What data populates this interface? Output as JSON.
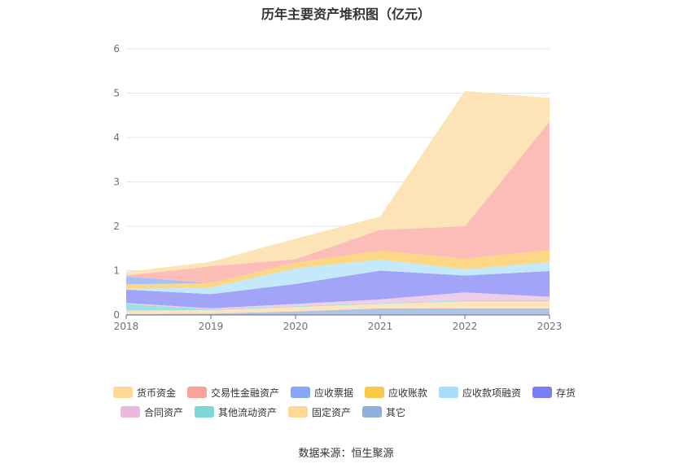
{
  "title": "历年主要资产堆积图（亿元）",
  "source": "数据来源：恒生聚源",
  "chart_data": {
    "type": "area",
    "stacked": true,
    "title": "历年主要资产堆积图（亿元）",
    "categories": [
      "2018",
      "2019",
      "2020",
      "2021",
      "2022",
      "2023"
    ],
    "y_ticks": [
      0,
      1,
      2,
      3,
      4,
      5,
      6
    ],
    "ylim": [
      0,
      6
    ],
    "grid": true,
    "legend_position": "bottom",
    "series": [
      {
        "name": "其它",
        "color": "#aec4e6",
        "values": [
          0.02,
          0.03,
          0.08,
          0.15,
          0.15,
          0.15
        ]
      },
      {
        "name": "固定资产",
        "color": "#fde4bf",
        "values": [
          0.08,
          0.08,
          0.1,
          0.1,
          0.16,
          0.16
        ]
      },
      {
        "name": "其他流动资产",
        "color": "#9fe0e3",
        "values": [
          0.15,
          0.02,
          0.02,
          0.02,
          0.02,
          0.02
        ]
      },
      {
        "name": "合同资产",
        "color": "#f0cde8",
        "values": [
          0.02,
          0.02,
          0.05,
          0.08,
          0.18,
          0.08
        ]
      },
      {
        "name": "存货",
        "color": "#a2a4f7",
        "values": [
          0.3,
          0.32,
          0.45,
          0.65,
          0.38,
          0.58
        ]
      },
      {
        "name": "应收款项融资",
        "color": "#c4e9fb",
        "values": [
          0.02,
          0.15,
          0.35,
          0.25,
          0.14,
          0.2
        ]
      },
      {
        "name": "应收账款",
        "color": "#fbd786",
        "values": [
          0.1,
          0.1,
          0.13,
          0.2,
          0.24,
          0.27
        ]
      },
      {
        "name": "应收票据",
        "color": "#a7c0f9",
        "values": [
          0.18,
          0.0,
          0.0,
          0.0,
          0.0,
          0.0
        ]
      },
      {
        "name": "交易性金融资产",
        "color": "#fcbdb8",
        "values": [
          0.02,
          0.38,
          0.08,
          0.47,
          0.73,
          2.9
        ]
      },
      {
        "name": "货币资金",
        "color": "#fce4b6",
        "values": [
          0.08,
          0.1,
          0.46,
          0.3,
          3.05,
          0.53
        ]
      }
    ]
  },
  "legend": {
    "row1": [
      {
        "label": "货币资金",
        "color": "#ffd896"
      },
      {
        "label": "交易性金融资产",
        "color": "#f8a39a"
      },
      {
        "label": "应收票据",
        "color": "#86a7f9"
      },
      {
        "label": "应收账款",
        "color": "#fbc94a"
      },
      {
        "label": "应收款项融资",
        "color": "#a8dcfa"
      },
      {
        "label": "存货",
        "color": "#7b7df2"
      }
    ],
    "row2": [
      {
        "label": "合同资产",
        "color": "#e8b8df"
      },
      {
        "label": "其他流动资产",
        "color": "#7fd6d6"
      },
      {
        "label": "固定资产",
        "color": "#ffd896"
      },
      {
        "label": "其它",
        "color": "#8fb0de"
      }
    ]
  }
}
